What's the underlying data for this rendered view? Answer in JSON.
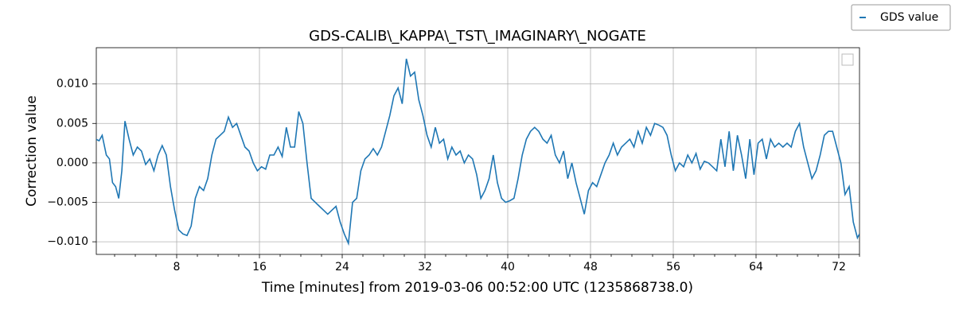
{
  "chart_data": {
    "type": "line",
    "title": "GDS-CALIB\\_KAPPA\\_TST\\_IMAGINARY\\_NOGATE",
    "xlabel": "Time [minutes] from 2019-03-06 00:52:00 UTC (1235868738.0)",
    "ylabel": "Correction value",
    "xlim": [
      0.23,
      74.0
    ],
    "ylim": [
      -0.0116,
      0.0146
    ],
    "xticks": [
      8,
      16,
      24,
      32,
      40,
      48,
      56,
      64,
      72
    ],
    "xminorticks": [
      2,
      4,
      6,
      10,
      12,
      14,
      18,
      20,
      22,
      26,
      28,
      30,
      34,
      36,
      38,
      42,
      44,
      46,
      50,
      52,
      54,
      58,
      60,
      62,
      66,
      68,
      70,
      74
    ],
    "yticks": [
      {
        "value": -0.01,
        "label": "−0.010"
      },
      {
        "value": -0.005,
        "label": "−0.005"
      },
      {
        "value": 0,
        "label": "0.000"
      },
      {
        "value": 0.005,
        "label": "0.005"
      },
      {
        "value": 0.01,
        "label": "0.010"
      }
    ],
    "grid": true,
    "legend": "upper right",
    "series": [
      {
        "name": "GDS value",
        "color": "#1f77b4",
        "x": [
          0.2,
          0.5,
          0.8,
          1.2,
          1.5,
          1.8,
          2.1,
          2.4,
          2.7,
          3.0,
          3.4,
          3.8,
          4.2,
          4.6,
          5.0,
          5.4,
          5.8,
          6.2,
          6.6,
          7.0,
          7.4,
          7.8,
          8.2,
          8.6,
          9.0,
          9.4,
          9.8,
          10.2,
          10.6,
          11.0,
          11.4,
          11.8,
          12.2,
          12.6,
          13.0,
          13.4,
          13.8,
          14.2,
          14.6,
          15.0,
          15.4,
          15.8,
          16.2,
          16.6,
          17.0,
          17.4,
          17.8,
          18.2,
          18.6,
          19.0,
          19.4,
          19.8,
          20.2,
          20.6,
          21.0,
          21.4,
          21.8,
          22.2,
          22.6,
          23.0,
          23.4,
          23.8,
          24.2,
          24.6,
          25.0,
          25.4,
          25.8,
          26.2,
          26.6,
          27.0,
          27.4,
          27.8,
          28.2,
          28.6,
          29.0,
          29.4,
          29.8,
          30.2,
          30.6,
          31.0,
          31.4,
          31.8,
          32.2,
          32.6,
          33.0,
          33.4,
          33.8,
          34.2,
          34.6,
          35.0,
          35.4,
          35.8,
          36.2,
          36.6,
          37.0,
          37.4,
          37.8,
          38.2,
          38.6,
          39.0,
          39.4,
          39.8,
          40.2,
          40.6,
          41.0,
          41.4,
          41.8,
          42.2,
          42.6,
          43.0,
          43.4,
          43.8,
          44.2,
          44.6,
          45.0,
          45.4,
          45.8,
          46.2,
          46.6,
          47.0,
          47.4,
          47.8,
          48.2,
          48.6,
          49.0,
          49.4,
          49.8,
          50.2,
          50.6,
          51.0,
          51.4,
          51.8,
          52.2,
          52.6,
          53.0,
          53.4,
          53.8,
          54.2,
          54.6,
          55.0,
          55.4,
          55.8,
          56.2,
          56.6,
          57.0,
          57.4,
          57.8,
          58.2,
          58.6,
          59.0,
          59.4,
          59.8,
          60.2,
          60.6,
          61.0,
          61.4,
          61.8,
          62.2,
          62.6,
          63.0,
          63.4,
          63.8,
          64.2,
          64.6,
          65.0,
          65.4,
          65.8,
          66.2,
          66.6,
          67.0,
          67.4,
          67.8,
          68.2,
          68.6,
          69.0,
          69.4,
          69.8,
          70.2,
          70.6,
          71.0,
          71.4,
          71.8,
          72.2,
          72.6,
          73.0,
          73.4,
          73.8,
          74.0
        ],
        "values": [
          0.003,
          0.0028,
          0.0035,
          0.001,
          0.0005,
          -0.0025,
          -0.003,
          -0.0045,
          -0.001,
          0.0053,
          0.003,
          0.001,
          0.002,
          0.0015,
          -0.0002,
          0.0005,
          -0.001,
          0.001,
          0.0022,
          0.001,
          -0.003,
          -0.006,
          -0.0085,
          -0.009,
          -0.0092,
          -0.008,
          -0.0045,
          -0.003,
          -0.0035,
          -0.002,
          0.001,
          0.003,
          0.0035,
          0.004,
          0.0058,
          0.0045,
          0.005,
          0.0035,
          0.002,
          0.0015,
          0,
          -0.001,
          -0.0005,
          -0.0008,
          0.001,
          0.001,
          0.002,
          0.0008,
          0.0045,
          0.002,
          0.002,
          0.0065,
          0.005,
          0,
          -0.0045,
          -0.005,
          -0.0055,
          -0.006,
          -0.0065,
          -0.006,
          -0.0055,
          -0.0075,
          -0.009,
          -0.0102,
          -0.005,
          -0.0045,
          -0.001,
          0.0005,
          0.001,
          0.0018,
          0.001,
          0.002,
          0.004,
          0.006,
          0.0085,
          0.0095,
          0.0075,
          0.0132,
          0.011,
          0.0115,
          0.008,
          0.006,
          0.0035,
          0.002,
          0.0045,
          0.0025,
          0.003,
          0.0005,
          0.002,
          0.001,
          0.0015,
          0,
          0.001,
          0.0005,
          -0.0015,
          -0.0045,
          -0.0035,
          -0.002,
          0.001,
          -0.0025,
          -0.0045,
          -0.005,
          -0.0048,
          -0.0045,
          -0.002,
          0.001,
          0.003,
          0.004,
          0.0045,
          0.004,
          0.003,
          0.0025,
          0.0035,
          0.001,
          0,
          0.0015,
          -0.002,
          0,
          -0.0025,
          -0.0045,
          -0.0065,
          -0.0035,
          -0.0025,
          -0.003,
          -0.0015,
          0,
          0.001,
          0.0025,
          0.001,
          0.002,
          0.0025,
          0.003,
          0.002,
          0.004,
          0.0025,
          0.0045,
          0.0035,
          0.005,
          0.0048,
          0.0045,
          0.0035,
          0.001,
          -0.001,
          0,
          -0.0005,
          0.001,
          0,
          0.0012,
          -0.0008,
          0.0002,
          0,
          -0.0005,
          -0.001,
          0.003,
          -0.0005,
          0.004,
          -0.001,
          0.0035,
          0.001,
          -0.002,
          0.003,
          -0.0015,
          0.0025,
          0.003,
          0.0005,
          0.003,
          0.002,
          0.0025,
          0.002,
          0.0025,
          0.002,
          0.004,
          0.005,
          0.002,
          0,
          -0.002,
          -0.001,
          0.001,
          0.0035,
          0.004,
          0.004,
          0.002,
          0,
          -0.004,
          -0.003,
          -0.0075,
          -0.0095,
          -0.009
        ]
      }
    ]
  }
}
